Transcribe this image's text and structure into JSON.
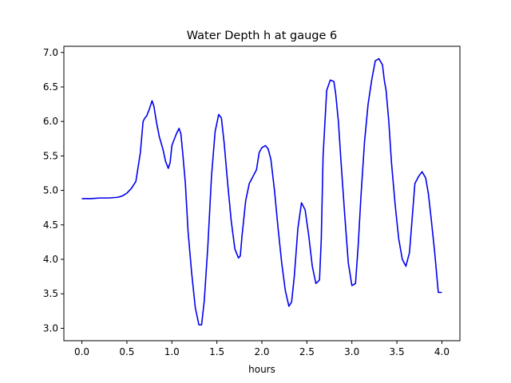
{
  "chart_data": {
    "type": "line",
    "title": "Water Depth h at gauge 6",
    "xlabel": "hours",
    "ylabel": "",
    "xlim": [
      -0.2,
      4.2
    ],
    "ylim": [
      2.82,
      7.09
    ],
    "x_ticks": [
      {
        "value": 0.0,
        "label": "0.0"
      },
      {
        "value": 0.5,
        "label": "0.5"
      },
      {
        "value": 1.0,
        "label": "1.0"
      },
      {
        "value": 1.5,
        "label": "1.5"
      },
      {
        "value": 2.0,
        "label": "2.0"
      },
      {
        "value": 2.5,
        "label": "2.5"
      },
      {
        "value": 3.0,
        "label": "3.0"
      },
      {
        "value": 3.5,
        "label": "3.5"
      },
      {
        "value": 4.0,
        "label": "4.0"
      }
    ],
    "y_ticks": [
      {
        "value": 3.0,
        "label": "3.0"
      },
      {
        "value": 3.5,
        "label": "3.5"
      },
      {
        "value": 4.0,
        "label": "4.0"
      },
      {
        "value": 4.5,
        "label": "4.5"
      },
      {
        "value": 5.0,
        "label": "5.0"
      },
      {
        "value": 5.5,
        "label": "5.5"
      },
      {
        "value": 6.0,
        "label": "6.0"
      },
      {
        "value": 6.5,
        "label": "6.5"
      },
      {
        "value": 7.0,
        "label": "7.0"
      }
    ],
    "grid": false,
    "series": [
      {
        "color": "#0000ee",
        "x": [
          0.0,
          0.1,
          0.2,
          0.3,
          0.4,
          0.45,
          0.5,
          0.55,
          0.6,
          0.65,
          0.68,
          0.7,
          0.72,
          0.75,
          0.78,
          0.8,
          0.83,
          0.86,
          0.9,
          0.93,
          0.96,
          0.98,
          1.0,
          1.02,
          1.05,
          1.08,
          1.1,
          1.12,
          1.15,
          1.18,
          1.22,
          1.26,
          1.3,
          1.33,
          1.36,
          1.4,
          1.44,
          1.48,
          1.52,
          1.55,
          1.58,
          1.62,
          1.66,
          1.7,
          1.74,
          1.76,
          1.78,
          1.82,
          1.86,
          1.9,
          1.94,
          1.97,
          2.0,
          2.04,
          2.07,
          2.1,
          2.14,
          2.18,
          2.22,
          2.26,
          2.3,
          2.33,
          2.36,
          2.4,
          2.44,
          2.48,
          2.52,
          2.56,
          2.6,
          2.64,
          2.66,
          2.68,
          2.72,
          2.76,
          2.8,
          2.82,
          2.85,
          2.88,
          2.92,
          2.96,
          3.0,
          3.04,
          3.07,
          3.1,
          3.14,
          3.18,
          3.22,
          3.26,
          3.3,
          3.34,
          3.36,
          3.38,
          3.41,
          3.44,
          3.48,
          3.52,
          3.56,
          3.6,
          3.64,
          3.67,
          3.7,
          3.74,
          3.78,
          3.82,
          3.85,
          3.88,
          3.92,
          3.96,
          4.0
        ],
        "y": [
          4.88,
          4.88,
          4.89,
          4.89,
          4.9,
          4.92,
          4.96,
          5.03,
          5.13,
          5.55,
          6.0,
          6.05,
          6.08,
          6.18,
          6.3,
          6.22,
          5.98,
          5.78,
          5.6,
          5.42,
          5.32,
          5.4,
          5.65,
          5.72,
          5.82,
          5.9,
          5.82,
          5.55,
          5.1,
          4.4,
          3.8,
          3.3,
          3.05,
          3.05,
          3.4,
          4.2,
          5.2,
          5.85,
          6.1,
          6.05,
          5.7,
          5.1,
          4.55,
          4.15,
          4.02,
          4.05,
          4.35,
          4.85,
          5.1,
          5.2,
          5.3,
          5.55,
          5.62,
          5.65,
          5.6,
          5.45,
          5.0,
          4.45,
          3.95,
          3.55,
          3.32,
          3.38,
          3.75,
          4.45,
          4.82,
          4.72,
          4.35,
          3.9,
          3.65,
          3.7,
          4.3,
          5.5,
          6.45,
          6.6,
          6.58,
          6.4,
          6.0,
          5.4,
          4.65,
          3.95,
          3.62,
          3.65,
          4.2,
          4.9,
          5.7,
          6.25,
          6.6,
          6.88,
          6.91,
          6.82,
          6.6,
          6.45,
          6.0,
          5.4,
          4.8,
          4.3,
          4.0,
          3.9,
          4.1,
          4.6,
          5.1,
          5.2,
          5.27,
          5.18,
          4.95,
          4.6,
          4.1,
          3.52,
          3.52
        ]
      }
    ]
  }
}
